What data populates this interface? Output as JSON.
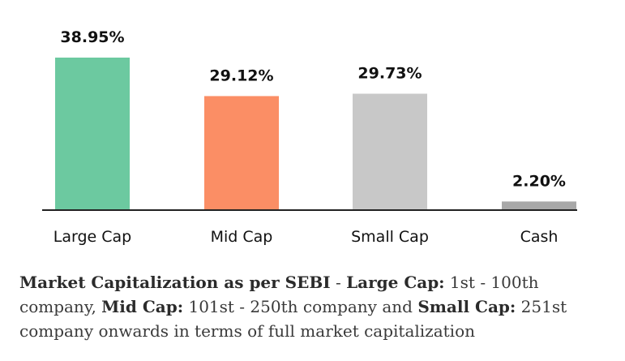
{
  "chart_data": {
    "type": "bar",
    "categories": [
      "Large Cap",
      "Mid Cap",
      "Small Cap",
      "Cash"
    ],
    "values": [
      38.95,
      29.12,
      29.73,
      2.2
    ],
    "value_labels": [
      "38.95%",
      "29.12%",
      "29.73%",
      "2.20%"
    ],
    "colors": [
      "#6cc9a0",
      "#fb8e65",
      "#c8c8c8",
      "#a8a8a8"
    ],
    "title": "",
    "xlabel": "",
    "ylabel": "",
    "ylim": [
      0,
      38.95
    ],
    "grid": false,
    "legend": "none"
  },
  "note": {
    "part1_bold": "Market Capitalization as per SEBI",
    "part1_text": " - ",
    "part2_bold": "Large Cap:",
    "part2_text": " 1st - 100th company, ",
    "part3_bold": "Mid Cap:",
    "part3_text": " 101st - 250th company and ",
    "part4_bold": "Small Cap:",
    "part4_text": " 251st company onwards in terms of full market capitalization"
  }
}
